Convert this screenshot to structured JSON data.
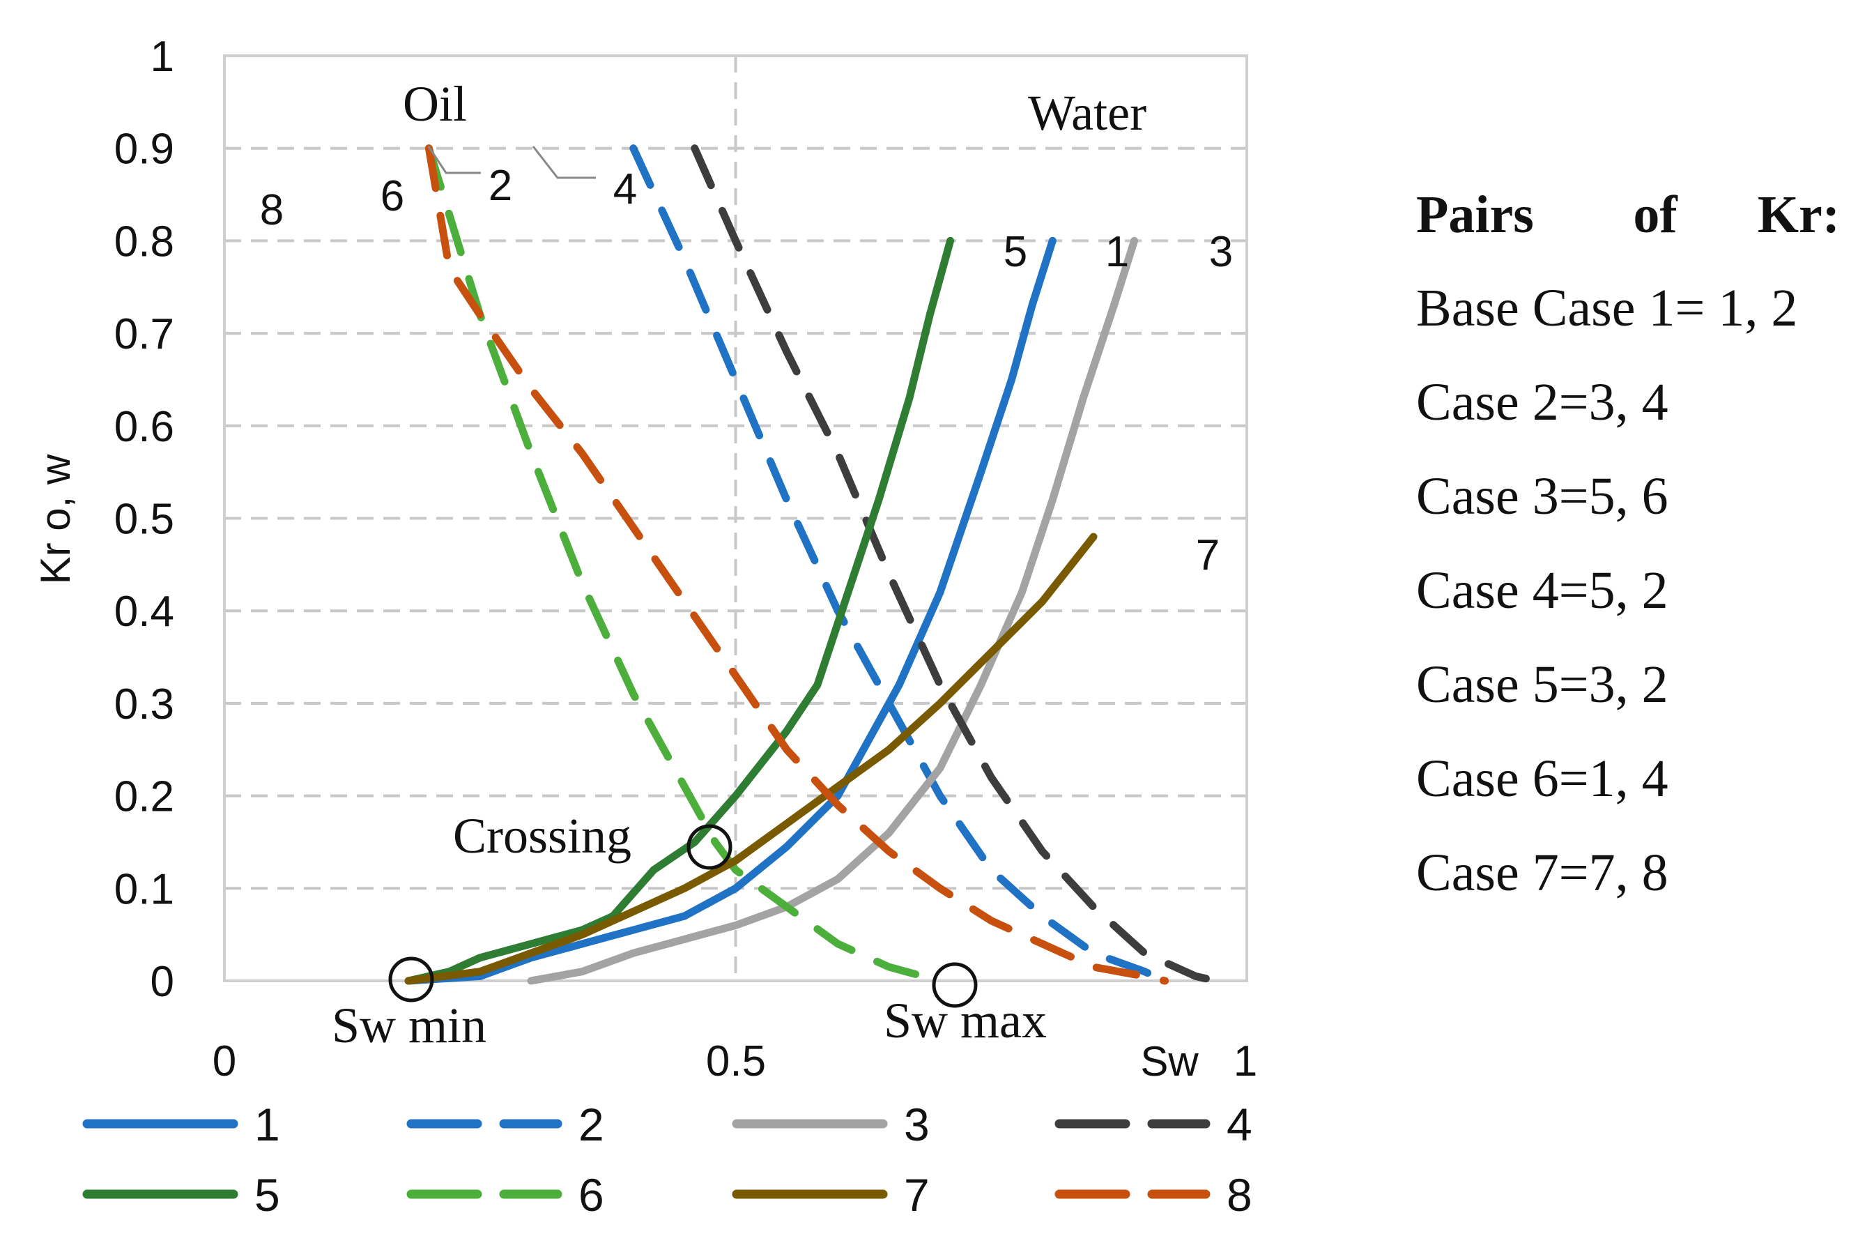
{
  "chart_data": {
    "type": "line",
    "title": "",
    "xlabel": "Sw",
    "ylabel": "Kr o, w",
    "xlim": [
      0,
      1
    ],
    "ylim": [
      0,
      1
    ],
    "x_tick_labels": [
      "0",
      "0.5",
      "1"
    ],
    "y_tick_labels": [
      "0",
      "0.1",
      "0.2",
      "0.3",
      "0.4",
      "0.5",
      "0.6",
      "0.7",
      "0.8",
      "0.9",
      "1"
    ],
    "grid": true,
    "legend_position": "bottom",
    "series": [
      {
        "name": "1",
        "phase": "water",
        "color": "#1f72c4",
        "dash": "solid",
        "points": [
          [
            0.18,
            0
          ],
          [
            0.25,
            0.005
          ],
          [
            0.3,
            0.025
          ],
          [
            0.35,
            0.04
          ],
          [
            0.4,
            0.055
          ],
          [
            0.45,
            0.07
          ],
          [
            0.5,
            0.1
          ],
          [
            0.55,
            0.145
          ],
          [
            0.6,
            0.2
          ],
          [
            0.63,
            0.26
          ],
          [
            0.66,
            0.32
          ],
          [
            0.7,
            0.42
          ],
          [
            0.74,
            0.55
          ],
          [
            0.77,
            0.65
          ],
          [
            0.79,
            0.73
          ],
          [
            0.81,
            0.8
          ]
        ]
      },
      {
        "name": "2",
        "phase": "oil",
        "color": "#1f72c4",
        "dash": "dashed",
        "points": [
          [
            0.4,
            0.9
          ],
          [
            0.45,
            0.78
          ],
          [
            0.5,
            0.65
          ],
          [
            0.55,
            0.52
          ],
          [
            0.6,
            0.4
          ],
          [
            0.65,
            0.3
          ],
          [
            0.7,
            0.2
          ],
          [
            0.75,
            0.12
          ],
          [
            0.8,
            0.07
          ],
          [
            0.85,
            0.03
          ],
          [
            0.9,
            0.01
          ],
          [
            0.92,
            0
          ]
        ]
      },
      {
        "name": "3",
        "phase": "water",
        "color": "#a3a3a3",
        "dash": "solid",
        "points": [
          [
            0.3,
            0
          ],
          [
            0.35,
            0.01
          ],
          [
            0.4,
            0.03
          ],
          [
            0.45,
            0.045
          ],
          [
            0.5,
            0.06
          ],
          [
            0.55,
            0.08
          ],
          [
            0.6,
            0.11
          ],
          [
            0.65,
            0.16
          ],
          [
            0.7,
            0.23
          ],
          [
            0.74,
            0.32
          ],
          [
            0.78,
            0.42
          ],
          [
            0.81,
            0.52
          ],
          [
            0.84,
            0.63
          ],
          [
            0.87,
            0.73
          ],
          [
            0.89,
            0.8
          ]
        ]
      },
      {
        "name": "4",
        "phase": "oil",
        "color": "#3d3d3d",
        "dash": "dashed",
        "points": [
          [
            0.46,
            0.9
          ],
          [
            0.5,
            0.8
          ],
          [
            0.55,
            0.68
          ],
          [
            0.6,
            0.57
          ],
          [
            0.65,
            0.44
          ],
          [
            0.7,
            0.32
          ],
          [
            0.75,
            0.22
          ],
          [
            0.8,
            0.14
          ],
          [
            0.85,
            0.08
          ],
          [
            0.9,
            0.03
          ],
          [
            0.95,
            0.005
          ],
          [
            0.97,
            0
          ]
        ]
      },
      {
        "name": "5",
        "phase": "water",
        "color": "#2e7d32",
        "dash": "solid",
        "points": [
          [
            0.18,
            0
          ],
          [
            0.22,
            0.01
          ],
          [
            0.25,
            0.025
          ],
          [
            0.3,
            0.04
          ],
          [
            0.35,
            0.055
          ],
          [
            0.38,
            0.07
          ],
          [
            0.42,
            0.12
          ],
          [
            0.46,
            0.15
          ],
          [
            0.5,
            0.2
          ],
          [
            0.55,
            0.27
          ],
          [
            0.58,
            0.32
          ],
          [
            0.61,
            0.42
          ],
          [
            0.64,
            0.52
          ],
          [
            0.67,
            0.63
          ],
          [
            0.69,
            0.72
          ],
          [
            0.71,
            0.8
          ]
        ]
      },
      {
        "name": "6",
        "phase": "oil",
        "color": "#4caf3c",
        "dash": "dashed",
        "points": [
          [
            0.2,
            0.9
          ],
          [
            0.25,
            0.72
          ],
          [
            0.3,
            0.57
          ],
          [
            0.35,
            0.43
          ],
          [
            0.4,
            0.31
          ],
          [
            0.45,
            0.21
          ],
          [
            0.48,
            0.15
          ],
          [
            0.5,
            0.12
          ],
          [
            0.55,
            0.08
          ],
          [
            0.6,
            0.04
          ],
          [
            0.65,
            0.015
          ],
          [
            0.7,
            0
          ]
        ]
      },
      {
        "name": "7",
        "phase": "water",
        "color": "#7a5a00",
        "dash": "solid",
        "points": [
          [
            0.18,
            0
          ],
          [
            0.25,
            0.01
          ],
          [
            0.3,
            0.03
          ],
          [
            0.35,
            0.05
          ],
          [
            0.4,
            0.075
          ],
          [
            0.45,
            0.1
          ],
          [
            0.5,
            0.13
          ],
          [
            0.55,
            0.17
          ],
          [
            0.6,
            0.21
          ],
          [
            0.65,
            0.25
          ],
          [
            0.7,
            0.3
          ],
          [
            0.75,
            0.355
          ],
          [
            0.8,
            0.41
          ],
          [
            0.85,
            0.48
          ]
        ]
      },
      {
        "name": "8",
        "phase": "oil",
        "color": "#c8500f",
        "dash": "dashed",
        "points": [
          [
            0.2,
            0.9
          ],
          [
            0.22,
            0.77
          ],
          [
            0.25,
            0.72
          ],
          [
            0.3,
            0.64
          ],
          [
            0.35,
            0.57
          ],
          [
            0.4,
            0.49
          ],
          [
            0.45,
            0.41
          ],
          [
            0.5,
            0.33
          ],
          [
            0.55,
            0.25
          ],
          [
            0.6,
            0.19
          ],
          [
            0.65,
            0.14
          ],
          [
            0.7,
            0.1
          ],
          [
            0.75,
            0.065
          ],
          [
            0.8,
            0.04
          ],
          [
            0.85,
            0.015
          ],
          [
            0.9,
            0.005
          ],
          [
            0.92,
            0
          ]
        ]
      }
    ],
    "curve_labels": [
      {
        "text": "8",
        "x": 0.09,
        "y": 0.84
      },
      {
        "text": "6",
        "x": 0.33,
        "y": 0.86
      },
      {
        "text": "2",
        "x": 0.53,
        "y": 0.88
      },
      {
        "text": "4",
        "x": 0.78,
        "y": 0.87
      },
      {
        "text": "5",
        "x": 1.56,
        "y": 0.79
      },
      {
        "text": "1",
        "x": 1.69,
        "y": 0.79
      },
      {
        "text": "3",
        "x": 1.85,
        "y": 0.79
      },
      {
        "text": "7",
        "x": 1.91,
        "y": 0.47
      }
    ],
    "annotations": {
      "oil": "Oil",
      "water": "Water",
      "crossing": "Crossing",
      "sw_min": "Sw min",
      "sw_max": "Sw max",
      "crossing_point": [
        0.475,
        0.145
      ],
      "sw_min_point": [
        0.185,
        0.003
      ],
      "sw_max_point": [
        0.715,
        -0.005
      ]
    }
  },
  "side_panel": {
    "heading_words": [
      "Pairs",
      "of",
      "Kr:"
    ],
    "cases": [
      "Base Case 1= 1, 2",
      "Case 2=3, 4",
      "Case 3=5, 6",
      "Case 4=5, 2",
      "Case 5=3, 2",
      "Case 6=1, 4",
      "Case 7=7, 8"
    ]
  }
}
